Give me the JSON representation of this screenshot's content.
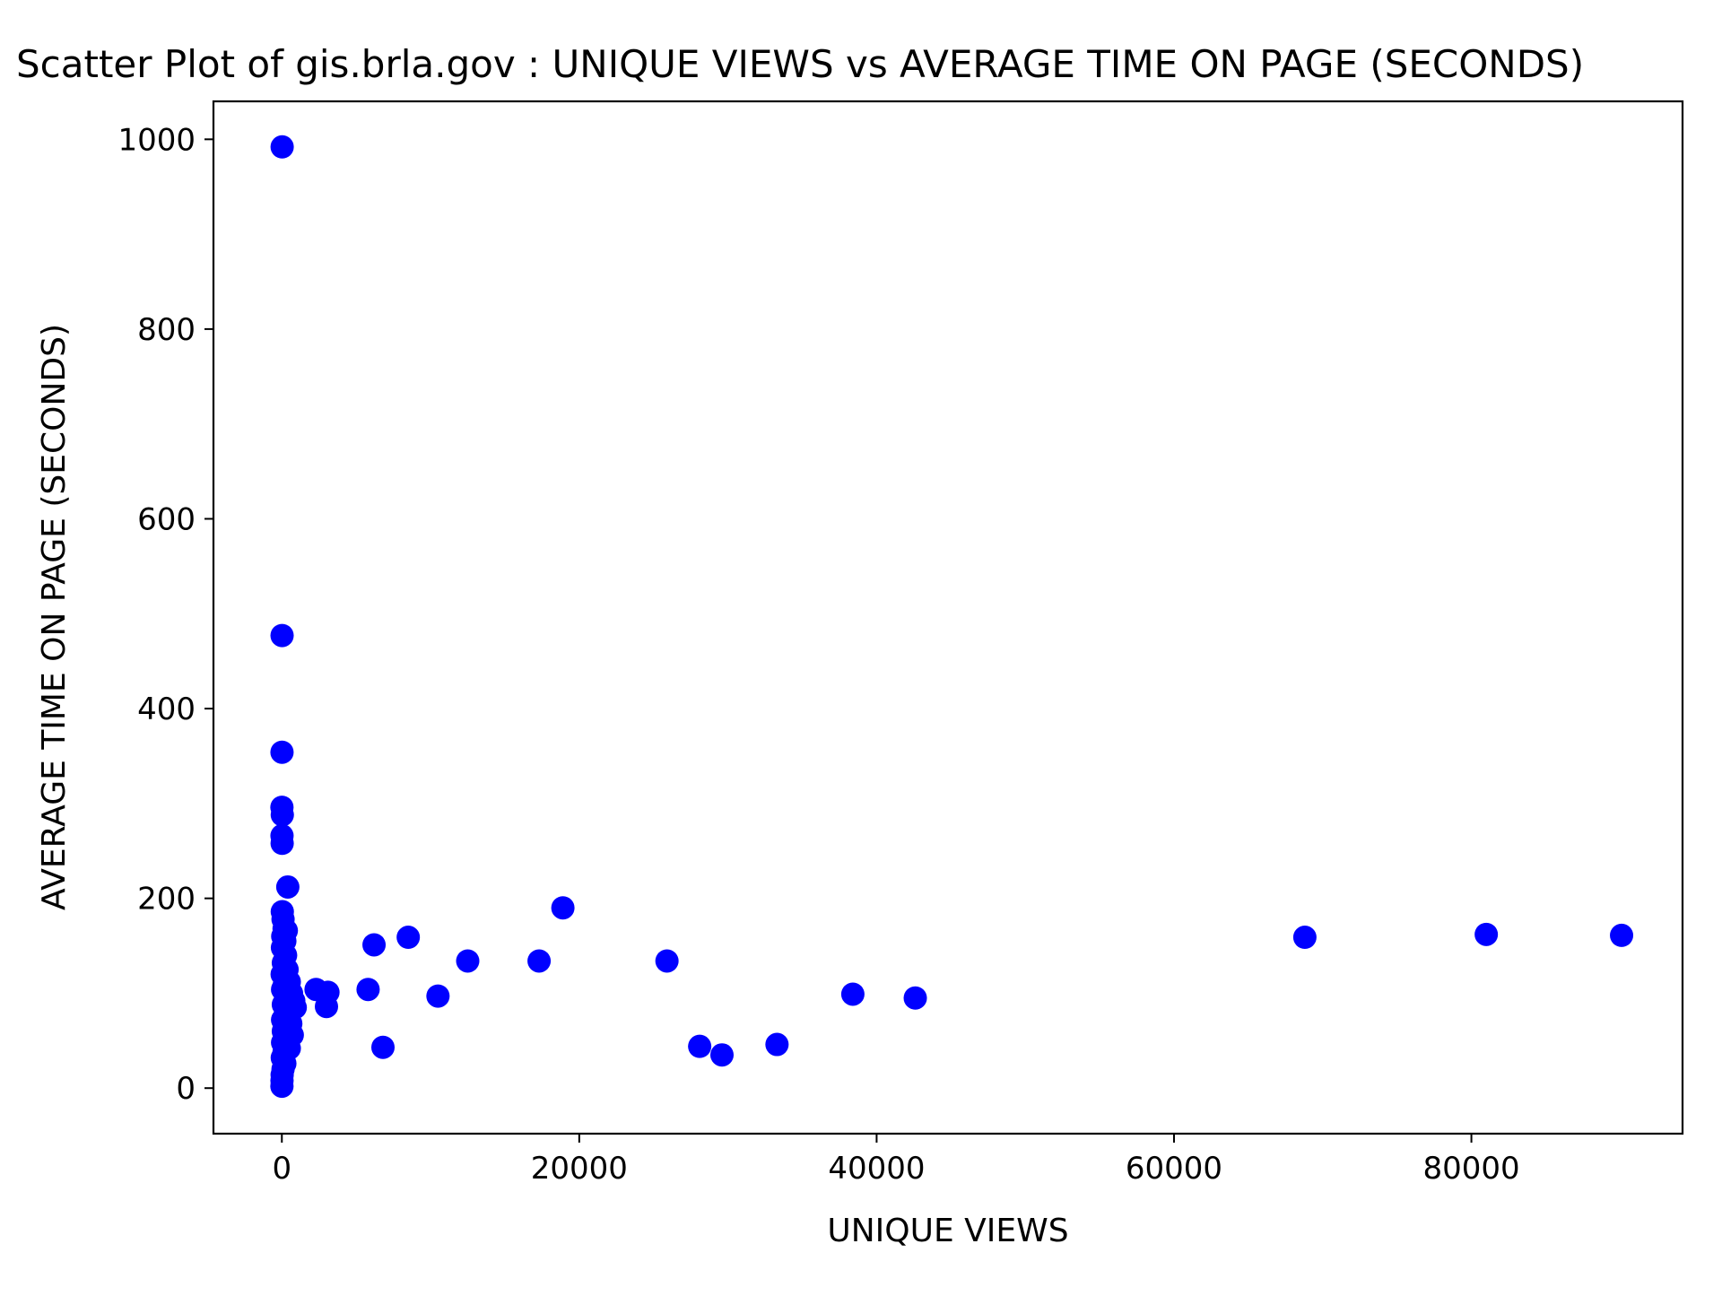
{
  "chart_data": {
    "type": "scatter",
    "title": "Scatter Plot of gis.brla.gov : UNIQUE VIEWS vs AVERAGE TIME ON PAGE (SECONDS)",
    "xlabel": "UNIQUE VIEWS",
    "ylabel": "AVERAGE TIME ON PAGE (SECONDS)",
    "xlim": [
      -4600,
      94200
    ],
    "ylim": [
      -48,
      1040
    ],
    "xticks": [
      0,
      20000,
      40000,
      60000,
      80000
    ],
    "yticks": [
      0,
      200,
      400,
      600,
      800,
      1000
    ],
    "xtick_labels": [
      "0",
      "20000",
      "40000",
      "60000",
      "80000"
    ],
    "ytick_labels": [
      "0",
      "200",
      "400",
      "600",
      "800",
      "1000"
    ],
    "grid": false,
    "legend": "none",
    "marker_color": "#0000ff",
    "points": [
      [
        20,
        992
      ],
      [
        15,
        477
      ],
      [
        10,
        354
      ],
      [
        5,
        296
      ],
      [
        30,
        288
      ],
      [
        10,
        266
      ],
      [
        20,
        258
      ],
      [
        400,
        212
      ],
      [
        30,
        186
      ],
      [
        80,
        178
      ],
      [
        150,
        168
      ],
      [
        300,
        166
      ],
      [
        60,
        160
      ],
      [
        200,
        155
      ],
      [
        40,
        148
      ],
      [
        250,
        140
      ],
      [
        100,
        132
      ],
      [
        350,
        125
      ],
      [
        20,
        120
      ],
      [
        500,
        112
      ],
      [
        150,
        108
      ],
      [
        50,
        104
      ],
      [
        650,
        100
      ],
      [
        300,
        96
      ],
      [
        800,
        92
      ],
      [
        100,
        88
      ],
      [
        900,
        85
      ],
      [
        400,
        80
      ],
      [
        200,
        76
      ],
      [
        50,
        72
      ],
      [
        600,
        68
      ],
      [
        300,
        64
      ],
      [
        100,
        60
      ],
      [
        700,
        56
      ],
      [
        250,
        52
      ],
      [
        50,
        48
      ],
      [
        500,
        42
      ],
      [
        150,
        38
      ],
      [
        30,
        32
      ],
      [
        200,
        26
      ],
      [
        80,
        20
      ],
      [
        20,
        14
      ],
      [
        10,
        8
      ],
      [
        5,
        2
      ],
      [
        2300,
        104
      ],
      [
        3100,
        101
      ],
      [
        3000,
        86
      ],
      [
        5800,
        104
      ],
      [
        6200,
        151
      ],
      [
        6800,
        43
      ],
      [
        8500,
        159
      ],
      [
        10500,
        97
      ],
      [
        12500,
        134
      ],
      [
        17300,
        134
      ],
      [
        18900,
        190
      ],
      [
        25900,
        134
      ],
      [
        28100,
        44
      ],
      [
        29600,
        35
      ],
      [
        33300,
        46
      ],
      [
        38400,
        99
      ],
      [
        42600,
        95
      ],
      [
        68800,
        159
      ],
      [
        81000,
        162
      ],
      [
        90100,
        161
      ]
    ]
  }
}
